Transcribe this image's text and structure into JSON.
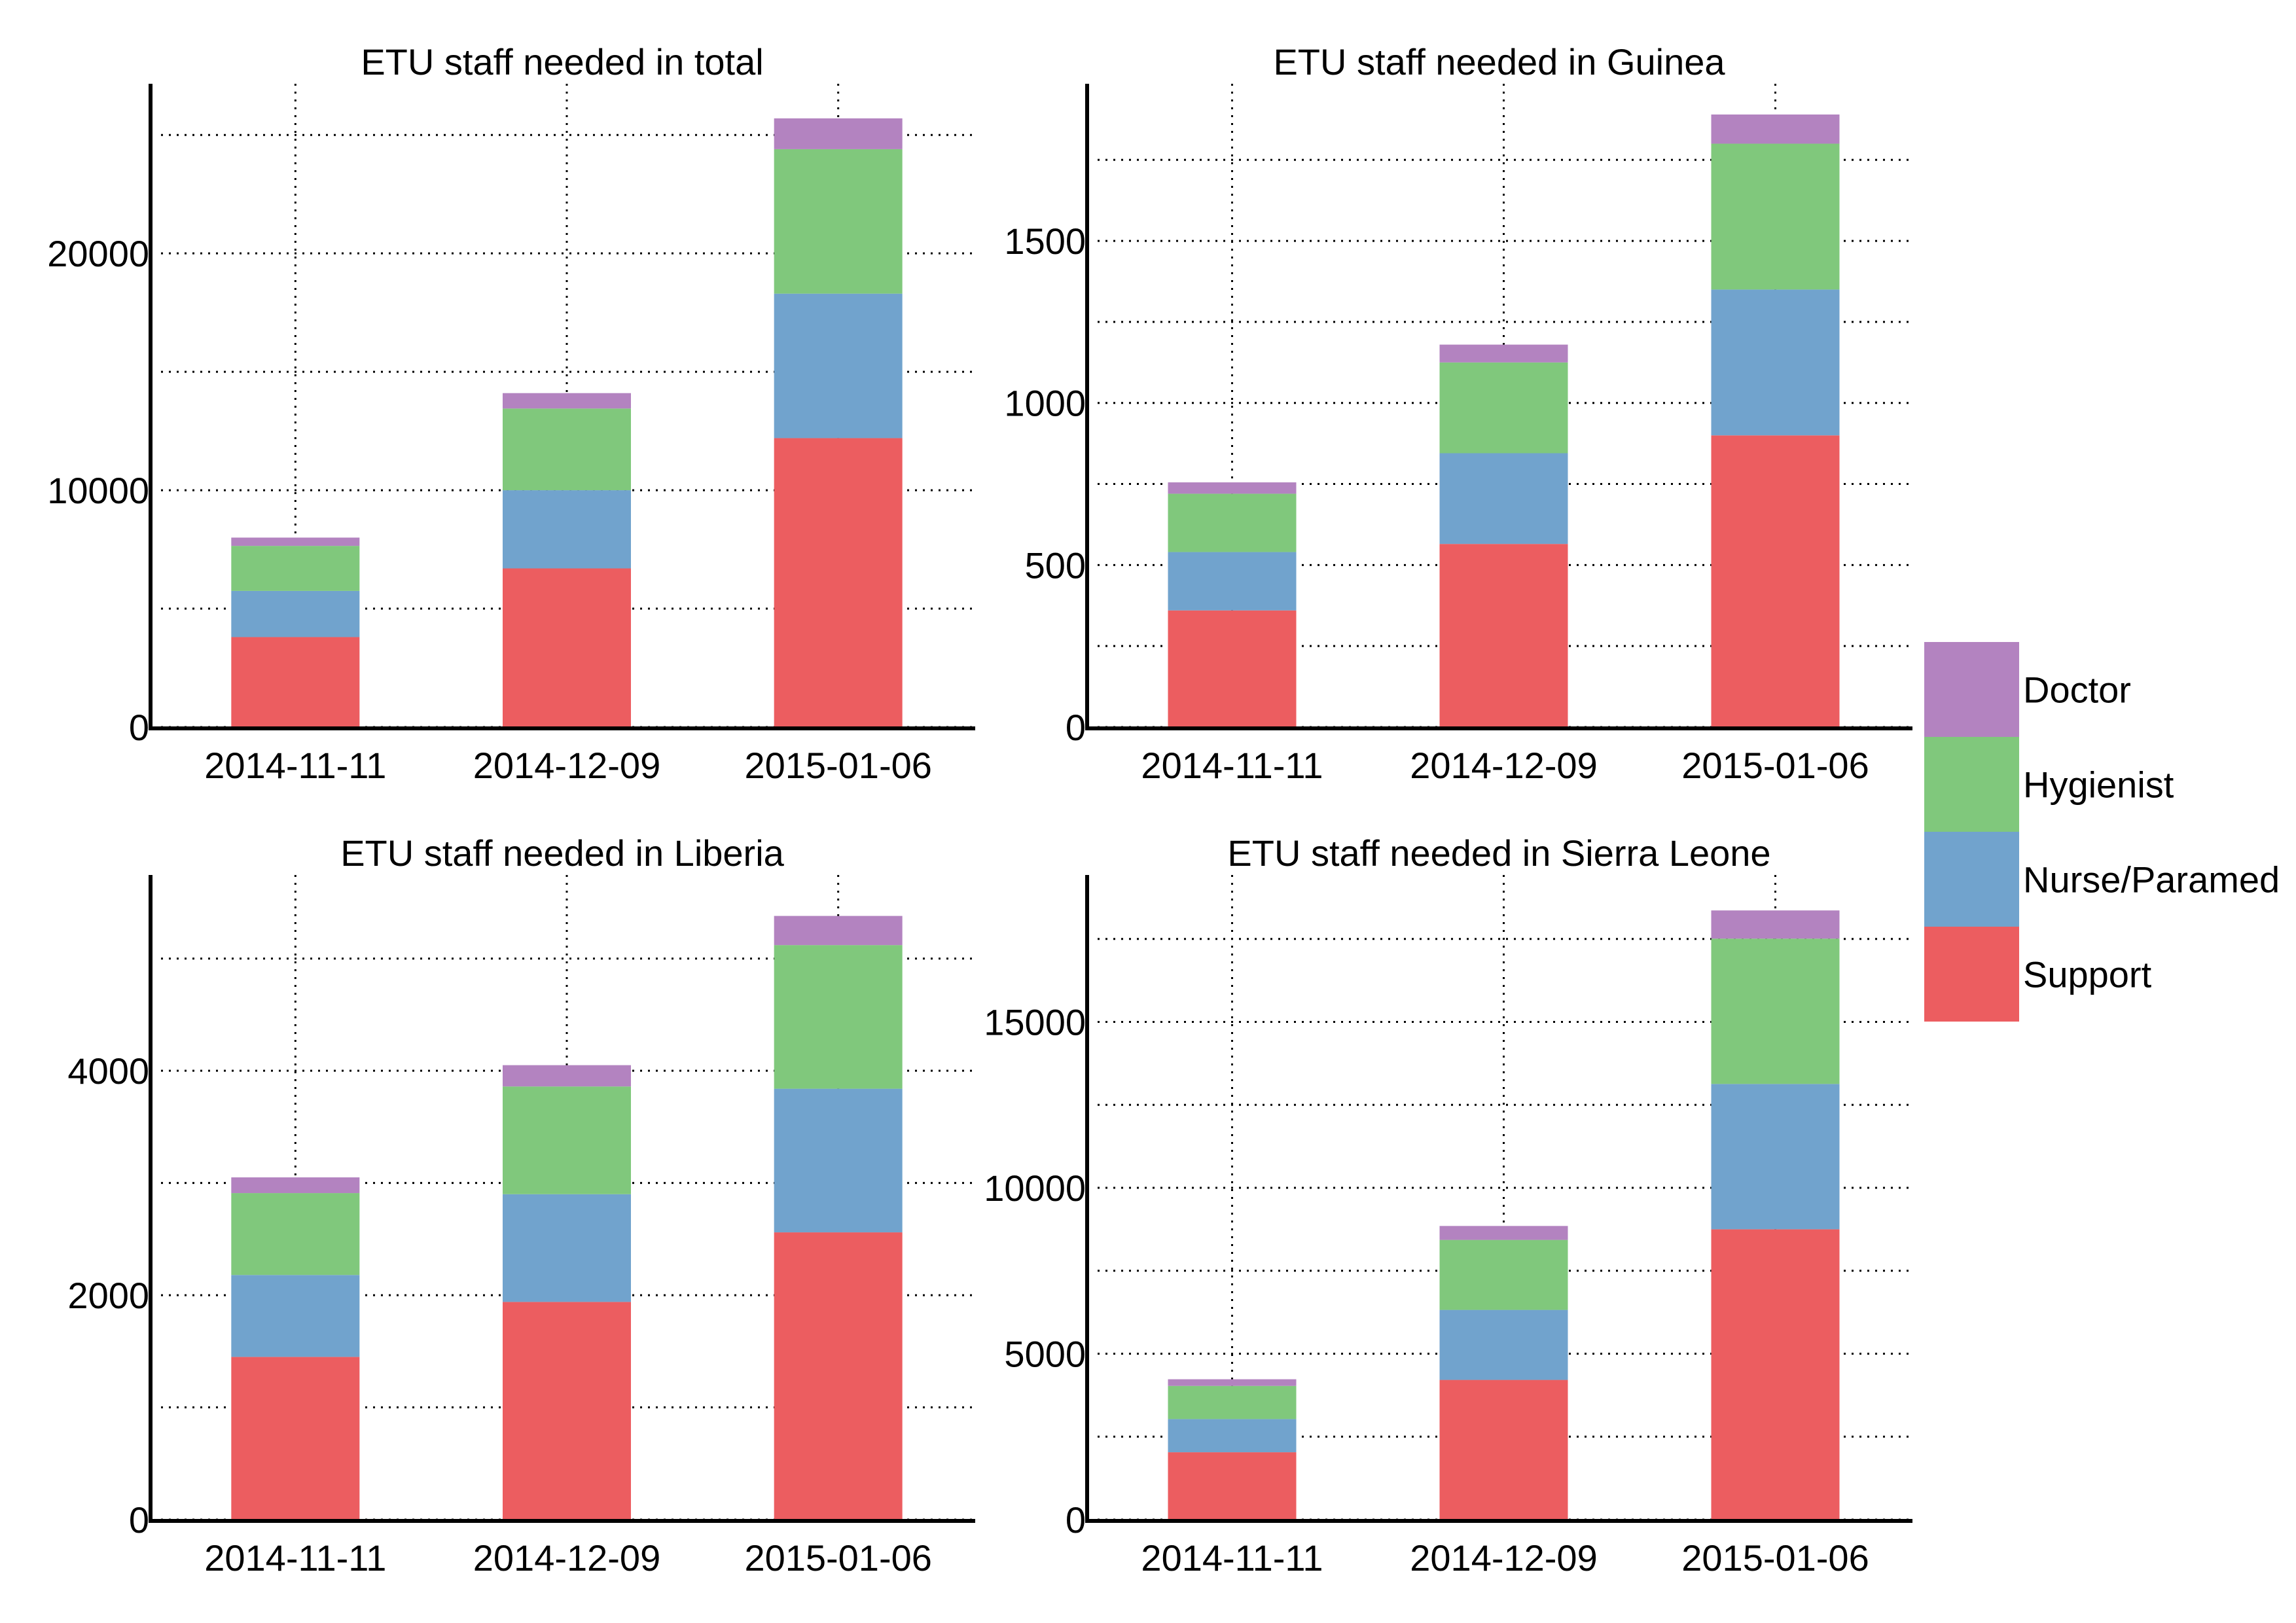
{
  "chart_data": [
    {
      "type": "bar",
      "stacked": true,
      "title": "ETU staff needed in total",
      "xlabel": "",
      "ylabel": "",
      "categories": [
        "2014-11-11",
        "2014-12-09",
        "2015-01-06"
      ],
      "series": [
        {
          "name": "Support",
          "values": [
            3800,
            6700,
            12200
          ]
        },
        {
          "name": "Nurse/Paramed",
          "values": [
            1950,
            3300,
            6100
          ]
        },
        {
          "name": "Hygienist",
          "values": [
            1900,
            3450,
            6100
          ]
        },
        {
          "name": "Doctor",
          "values": [
            350,
            650,
            1300
          ]
        }
      ],
      "yticks": [
        0,
        10000,
        20000
      ],
      "ylim": [
        0,
        26000
      ],
      "grid": true
    },
    {
      "type": "bar",
      "stacked": true,
      "title": "ETU staff needed in Guinea",
      "xlabel": "",
      "ylabel": "",
      "categories": [
        "2014-11-11",
        "2014-12-09",
        "2015-01-06"
      ],
      "series": [
        {
          "name": "Support",
          "values": [
            360,
            565,
            900
          ]
        },
        {
          "name": "Nurse/Paramed",
          "values": [
            180,
            280,
            450
          ]
        },
        {
          "name": "Hygienist",
          "values": [
            180,
            280,
            450
          ]
        },
        {
          "name": "Doctor",
          "values": [
            35,
            55,
            90
          ]
        }
      ],
      "yticks": [
        0,
        500,
        1000,
        1500
      ],
      "ylim": [
        0,
        1900
      ],
      "grid": true
    },
    {
      "type": "bar",
      "stacked": true,
      "title": "ETU staff needed in Liberia",
      "xlabel": "",
      "ylabel": "",
      "categories": [
        "2014-11-11",
        "2014-12-09",
        "2015-01-06"
      ],
      "series": [
        {
          "name": "Support",
          "values": [
            1450,
            1940,
            2560
          ]
        },
        {
          "name": "Nurse/Paramed",
          "values": [
            730,
            960,
            1280
          ]
        },
        {
          "name": "Hygienist",
          "values": [
            730,
            960,
            1280
          ]
        },
        {
          "name": "Doctor",
          "values": [
            140,
            190,
            260
          ]
        }
      ],
      "yticks": [
        0,
        2000,
        4000
      ],
      "ylim": [
        0,
        5500
      ],
      "grid": true
    },
    {
      "type": "bar",
      "stacked": true,
      "title": "ETU staff needed in Sierra Leone",
      "xlabel": "",
      "ylabel": "",
      "categories": [
        "2014-11-11",
        "2014-12-09",
        "2015-01-06"
      ],
      "series": [
        {
          "name": "Support",
          "values": [
            2030,
            4210,
            8750
          ]
        },
        {
          "name": "Nurse/Paramed",
          "values": [
            1000,
            2110,
            4380
          ]
        },
        {
          "name": "Hygienist",
          "values": [
            1000,
            2110,
            4380
          ]
        },
        {
          "name": "Doctor",
          "values": [
            200,
            420,
            850
          ]
        }
      ],
      "yticks": [
        0,
        5000,
        10000,
        15000
      ],
      "ylim": [
        0,
        18600
      ],
      "grid": true
    }
  ],
  "legend": {
    "placement": "right",
    "items": [
      "Doctor",
      "Hygienist",
      "Nurse/Paramed",
      "Support"
    ]
  },
  "colors": {
    "Support": "#ec5d60",
    "Nurse/Paramed": "#71a3cd",
    "Hygienist": "#80c87c",
    "Doctor": "#b383c0"
  }
}
